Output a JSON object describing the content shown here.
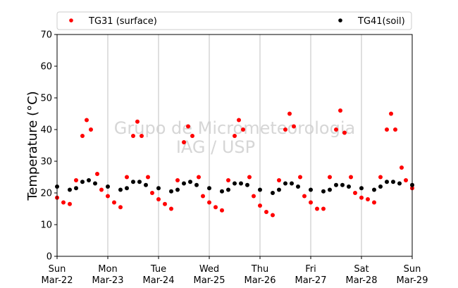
{
  "chart_data": {
    "type": "scatter",
    "ylabel": "Temperature (°C)",
    "ylim": [
      0,
      70
    ],
    "yticks": [
      0,
      10,
      20,
      30,
      40,
      50,
      60,
      70
    ],
    "xlim": [
      "2020-03-22T00:00",
      "2020-03-29T00:00"
    ],
    "xticks": [
      {
        "day": "Sun",
        "date": "Mar-22"
      },
      {
        "day": "Mon",
        "date": "Mar-23"
      },
      {
        "day": "Tue",
        "date": "Mar-24"
      },
      {
        "day": "Wed",
        "date": "Mar-25"
      },
      {
        "day": "Thu",
        "date": "Mar-26"
      },
      {
        "day": "Fri",
        "date": "Mar-27"
      },
      {
        "day": "Sat",
        "date": "Mar-28"
      },
      {
        "day": "Sun",
        "date": "Mar-29"
      }
    ],
    "grid": "vertical",
    "legend_position": "top",
    "watermark": [
      "Grupo de Micrometeorologia",
      "IAG / USP"
    ],
    "series": [
      {
        "name": "TG31 (surface)",
        "color": "#ff0000",
        "marker": "circle",
        "points": [
          [
            "2020-03-22T00:00",
            18.5
          ],
          [
            "2020-03-22T03:00",
            17.0
          ],
          [
            "2020-03-22T06:00",
            16.5
          ],
          [
            "2020-03-22T09:00",
            24.0
          ],
          [
            "2020-03-22T12:00",
            38.0
          ],
          [
            "2020-03-22T14:00",
            43.0
          ],
          [
            "2020-03-22T16:00",
            40.0
          ],
          [
            "2020-03-22T19:00",
            26.0
          ],
          [
            "2020-03-22T21:00",
            21.0
          ],
          [
            "2020-03-23T00:00",
            19.0
          ],
          [
            "2020-03-23T03:00",
            17.0
          ],
          [
            "2020-03-23T06:00",
            15.5
          ],
          [
            "2020-03-23T09:00",
            25.0
          ],
          [
            "2020-03-23T12:00",
            38.0
          ],
          [
            "2020-03-23T14:00",
            42.5
          ],
          [
            "2020-03-23T16:00",
            38.0
          ],
          [
            "2020-03-23T19:00",
            25.0
          ],
          [
            "2020-03-23T21:00",
            20.0
          ],
          [
            "2020-03-24T00:00",
            18.0
          ],
          [
            "2020-03-24T03:00",
            16.5
          ],
          [
            "2020-03-24T06:00",
            15.0
          ],
          [
            "2020-03-24T09:00",
            24.0
          ],
          [
            "2020-03-24T12:00",
            36.0
          ],
          [
            "2020-03-24T14:00",
            41.0
          ],
          [
            "2020-03-24T16:00",
            38.0
          ],
          [
            "2020-03-24T19:00",
            25.0
          ],
          [
            "2020-03-24T21:00",
            19.0
          ],
          [
            "2020-03-25T00:00",
            17.0
          ],
          [
            "2020-03-25T03:00",
            15.5
          ],
          [
            "2020-03-25T06:00",
            14.5
          ],
          [
            "2020-03-25T09:00",
            24.0
          ],
          [
            "2020-03-25T12:00",
            38.0
          ],
          [
            "2020-03-25T14:00",
            43.0
          ],
          [
            "2020-03-25T16:00",
            40.0
          ],
          [
            "2020-03-25T19:00",
            25.0
          ],
          [
            "2020-03-25T21:00",
            19.0
          ],
          [
            "2020-03-26T00:00",
            16.0
          ],
          [
            "2020-03-26T03:00",
            14.0
          ],
          [
            "2020-03-26T06:00",
            13.0
          ],
          [
            "2020-03-26T09:00",
            24.0
          ],
          [
            "2020-03-26T12:00",
            40.0
          ],
          [
            "2020-03-26T14:00",
            45.0
          ],
          [
            "2020-03-26T16:00",
            41.0
          ],
          [
            "2020-03-26T19:00",
            25.0
          ],
          [
            "2020-03-26T21:00",
            19.0
          ],
          [
            "2020-03-27T00:00",
            17.0
          ],
          [
            "2020-03-27T03:00",
            15.0
          ],
          [
            "2020-03-27T06:00",
            15.0
          ],
          [
            "2020-03-27T09:00",
            25.0
          ],
          [
            "2020-03-27T12:00",
            40.0
          ],
          [
            "2020-03-27T14:00",
            46.0
          ],
          [
            "2020-03-27T16:00",
            39.0
          ],
          [
            "2020-03-27T19:00",
            25.0
          ],
          [
            "2020-03-27T21:00",
            20.0
          ],
          [
            "2020-03-28T00:00",
            18.5
          ],
          [
            "2020-03-28T03:00",
            18.0
          ],
          [
            "2020-03-28T06:00",
            17.0
          ],
          [
            "2020-03-28T09:00",
            25.0
          ],
          [
            "2020-03-28T12:00",
            40.0
          ],
          [
            "2020-03-28T14:00",
            45.0
          ],
          [
            "2020-03-28T16:00",
            40.0
          ],
          [
            "2020-03-28T19:00",
            28.0
          ],
          [
            "2020-03-28T21:00",
            24.0
          ],
          [
            "2020-03-29T00:00",
            21.5
          ]
        ]
      },
      {
        "name": "TG41(soil)",
        "color": "#000000",
        "marker": "circle",
        "points": [
          [
            "2020-03-22T00:00",
            22.0
          ],
          [
            "2020-03-22T06:00",
            21.0
          ],
          [
            "2020-03-22T09:00",
            21.5
          ],
          [
            "2020-03-22T12:00",
            23.5
          ],
          [
            "2020-03-22T15:00",
            24.0
          ],
          [
            "2020-03-22T18:00",
            23.0
          ],
          [
            "2020-03-23T00:00",
            22.0
          ],
          [
            "2020-03-23T06:00",
            21.0
          ],
          [
            "2020-03-23T09:00",
            21.5
          ],
          [
            "2020-03-23T12:00",
            23.5
          ],
          [
            "2020-03-23T15:00",
            23.5
          ],
          [
            "2020-03-23T18:00",
            22.5
          ],
          [
            "2020-03-24T00:00",
            21.5
          ],
          [
            "2020-03-24T06:00",
            20.5
          ],
          [
            "2020-03-24T09:00",
            21.0
          ],
          [
            "2020-03-24T12:00",
            23.0
          ],
          [
            "2020-03-24T15:00",
            23.5
          ],
          [
            "2020-03-24T18:00",
            22.5
          ],
          [
            "2020-03-25T00:00",
            21.5
          ],
          [
            "2020-03-25T06:00",
            20.5
          ],
          [
            "2020-03-25T09:00",
            21.0
          ],
          [
            "2020-03-25T12:00",
            23.0
          ],
          [
            "2020-03-25T15:00",
            23.0
          ],
          [
            "2020-03-25T18:00",
            22.5
          ],
          [
            "2020-03-26T00:00",
            21.0
          ],
          [
            "2020-03-26T06:00",
            20.0
          ],
          [
            "2020-03-26T09:00",
            21.0
          ],
          [
            "2020-03-26T12:00",
            23.0
          ],
          [
            "2020-03-26T15:00",
            23.0
          ],
          [
            "2020-03-26T18:00",
            22.0
          ],
          [
            "2020-03-27T00:00",
            21.0
          ],
          [
            "2020-03-27T06:00",
            20.5
          ],
          [
            "2020-03-27T09:00",
            21.0
          ],
          [
            "2020-03-27T12:00",
            22.5
          ],
          [
            "2020-03-27T15:00",
            22.5
          ],
          [
            "2020-03-27T18:00",
            22.0
          ],
          [
            "2020-03-28T00:00",
            21.5
          ],
          [
            "2020-03-28T06:00",
            21.0
          ],
          [
            "2020-03-28T09:00",
            22.0
          ],
          [
            "2020-03-28T12:00",
            23.5
          ],
          [
            "2020-03-28T15:00",
            23.5
          ],
          [
            "2020-03-28T18:00",
            23.0
          ],
          [
            "2020-03-29T00:00",
            22.5
          ]
        ]
      }
    ]
  }
}
